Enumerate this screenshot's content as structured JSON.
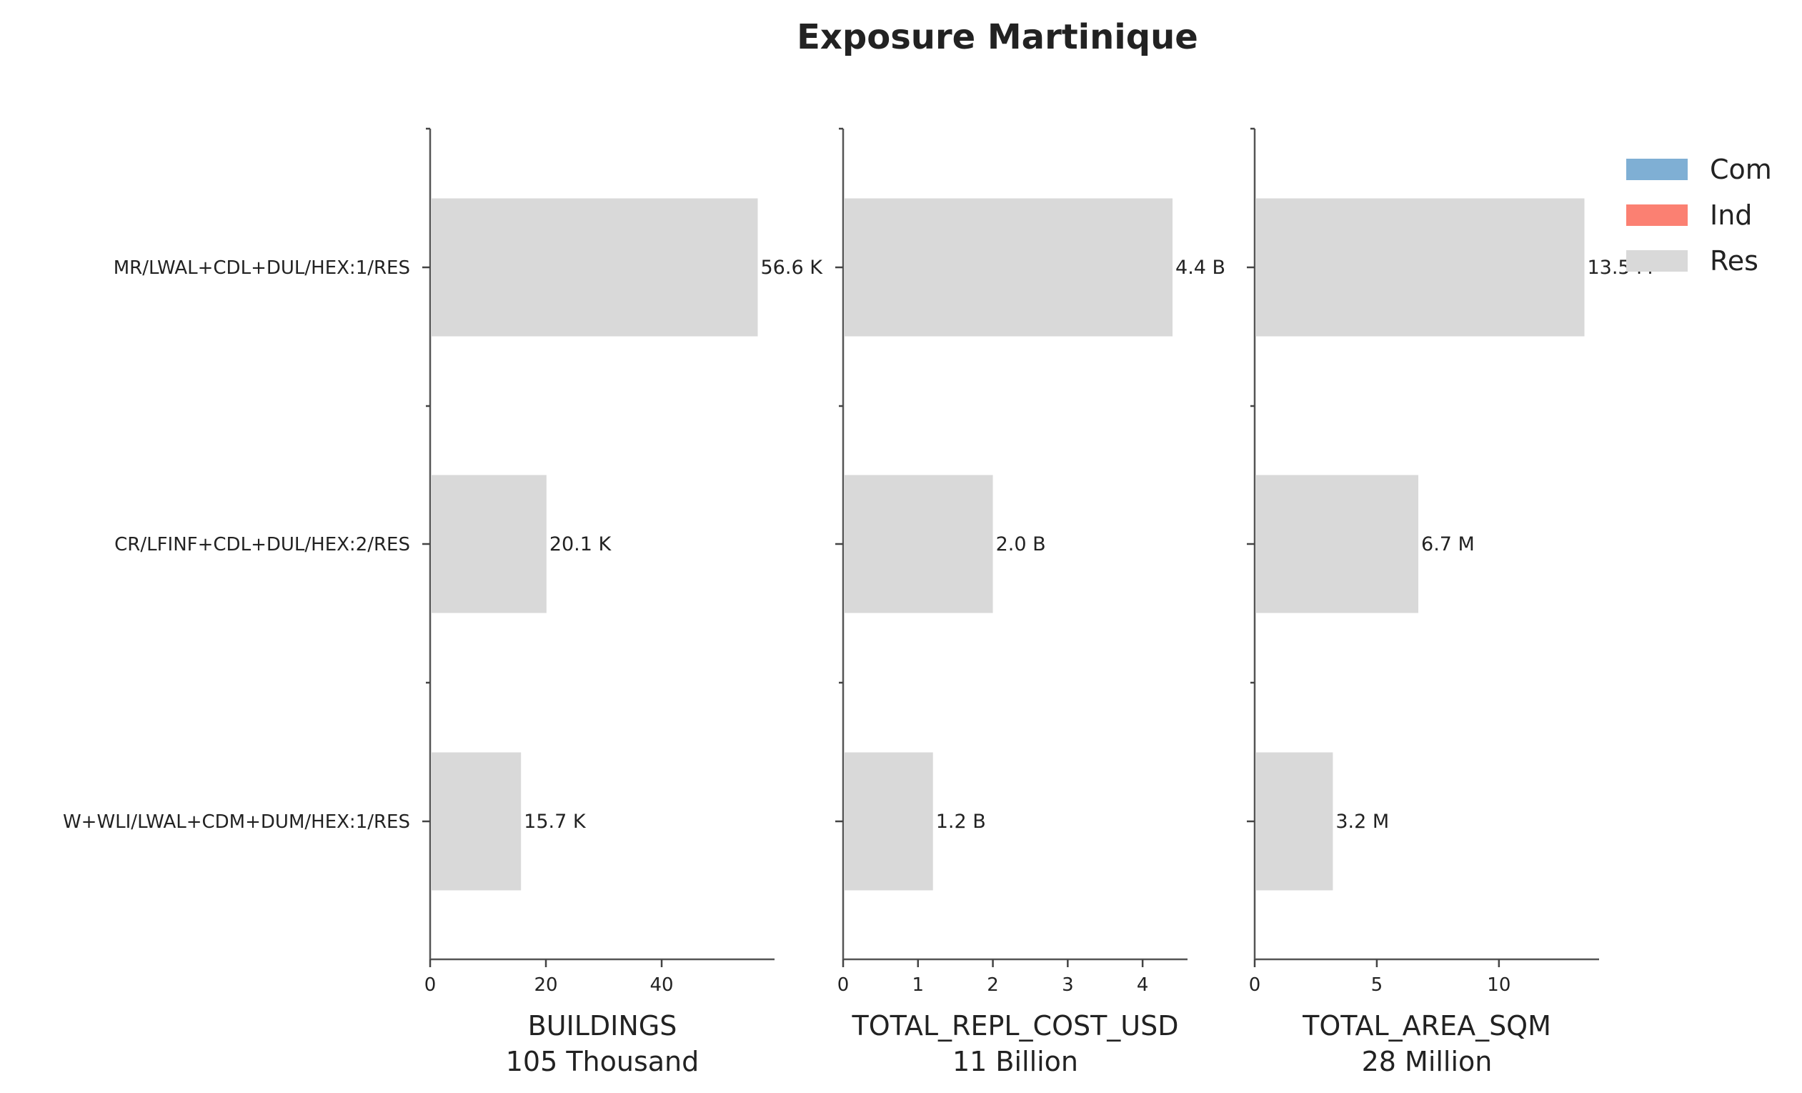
{
  "chart_data": {
    "type": "bar",
    "orientation": "horizontal",
    "title": "Exposure Martinique",
    "categories": [
      "MR/LWAL+CDL+DUL/HEX:1/RES",
      "CR/LFINF+CDL+DUL/HEX:2/RES",
      "W+WLI/LWAL+CDM+DUM/HEX:1/RES"
    ],
    "legend": {
      "placement": "top-right",
      "entries": [
        {
          "name": "Com",
          "color": "#7fafd4"
        },
        {
          "name": "Ind",
          "color": "#fb8072"
        },
        {
          "name": "Res",
          "color": "#d9d9d9"
        }
      ]
    },
    "panels": [
      {
        "xlabel": "BUILDINGS",
        "total_label": "105 Thousand",
        "unit": "Thousand",
        "xlim": [
          0,
          59.5
        ],
        "ticks": [
          0,
          20,
          40
        ],
        "series": [
          {
            "name": "Res",
            "values": [
              56.6,
              20.1,
              15.7
            ],
            "labels": [
              "56.6 K",
              "20.1 K",
              "15.7 K"
            ]
          }
        ]
      },
      {
        "xlabel": "TOTAL_REPL_COST_USD",
        "total_label": "11 Billion",
        "unit": "Billion",
        "xlim": [
          0,
          4.6
        ],
        "ticks": [
          0,
          1,
          2,
          3,
          4
        ],
        "series": [
          {
            "name": "Res",
            "values": [
              4.4,
              2.0,
              1.2
            ],
            "labels": [
              "4.4 B",
              "2.0 B",
              "1.2 B"
            ]
          }
        ]
      },
      {
        "xlabel": "TOTAL_AREA_SQM",
        "total_label": "28 Million",
        "unit": "Million",
        "xlim": [
          0,
          14.1
        ],
        "ticks": [
          0,
          5,
          10
        ],
        "series": [
          {
            "name": "Res",
            "values": [
              13.5,
              6.7,
              3.2
            ],
            "labels": [
              "13.5 M",
              "6.7 M",
              "3.2 M"
            ]
          }
        ]
      }
    ],
    "grid": false
  }
}
